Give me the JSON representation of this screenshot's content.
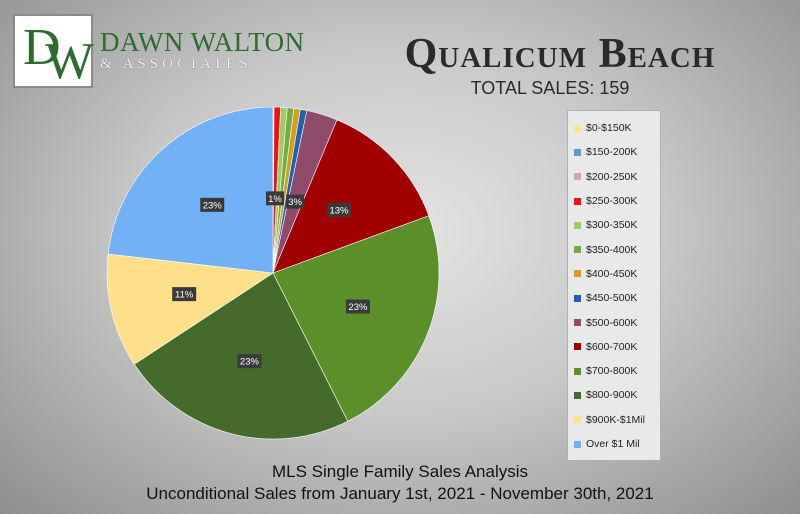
{
  "logo": {
    "monogram_d": "D",
    "monogram_w": "W",
    "name": "DAWN WALTON",
    "sub": "& ASSOCIATES"
  },
  "title": "Qualicum Beach",
  "subtitle": "TOTAL SALES: 159",
  "footer": {
    "line1": "MLS Single Family Sales Analysis",
    "line2": "Unconditional Sales from January 1st, 2021 - November 30th, 2021"
  },
  "chart_data": {
    "type": "pie",
    "total": 159,
    "slices": [
      {
        "label": "$0-$150K",
        "value": 0,
        "color": "#ffe38a",
        "data_label": ""
      },
      {
        "label": "$150-200K",
        "value": 0,
        "color": "#5b9bd5",
        "data_label": ""
      },
      {
        "label": "$200-250K",
        "value": 0.1,
        "color": "#d8a0b4",
        "data_label": ""
      },
      {
        "label": "$250-300K",
        "value": 0.63,
        "color": "#ee1111",
        "data_label": "1%"
      },
      {
        "label": "$300-350K",
        "value": 0.63,
        "color": "#9ccc65",
        "data_label": ""
      },
      {
        "label": "$350-400K",
        "value": 0.63,
        "color": "#70ad47",
        "data_label": ""
      },
      {
        "label": "$400-450K",
        "value": 0.63,
        "color": "#d4a017",
        "data_label": ""
      },
      {
        "label": "$450-500K",
        "value": 0.63,
        "color": "#1f5fb4",
        "data_label": ""
      },
      {
        "label": "$500-600K",
        "value": 3,
        "color": "#8e4c6a",
        "data_label": "3%"
      },
      {
        "label": "$600-700K",
        "value": 13,
        "color": "#a00000",
        "data_label": "13%"
      },
      {
        "label": "$700-800K",
        "value": 23,
        "color": "#5a8f29",
        "data_label": "23%"
      },
      {
        "label": "$800-900K",
        "value": 23,
        "color": "#456b2c",
        "data_label": "23%"
      },
      {
        "label": "$900K-$1Mil",
        "value": 11,
        "color": "#ffe08a",
        "data_label": "11%"
      },
      {
        "label": "Over $1 Mil",
        "value": 23,
        "color": "#73b1f7",
        "data_label": "23%"
      }
    ]
  }
}
